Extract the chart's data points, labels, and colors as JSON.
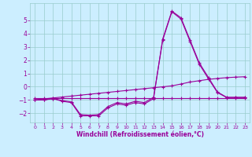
{
  "xlabel": "Windchill (Refroidissement éolien,°C)",
  "bg_color": "#cceeff",
  "line_color": "#990099",
  "grid_color": "#99cccc",
  "xlim": [
    -0.5,
    23.5
  ],
  "ylim": [
    -2.7,
    6.3
  ],
  "xticks": [
    0,
    1,
    2,
    3,
    4,
    5,
    6,
    7,
    8,
    9,
    10,
    11,
    12,
    13,
    14,
    15,
    16,
    17,
    18,
    19,
    20,
    21,
    22,
    23
  ],
  "yticks": [
    -2,
    -1,
    0,
    1,
    2,
    3,
    4,
    5
  ],
  "series0": [
    -1.0,
    -1.0,
    -0.9,
    -1.1,
    -1.2,
    -2.2,
    -2.2,
    -2.2,
    -1.6,
    -1.3,
    -1.4,
    -1.2,
    -1.3,
    -0.9,
    3.6,
    5.7,
    5.2,
    3.5,
    1.8,
    0.7,
    -0.4,
    -0.8,
    -0.8,
    -0.8
  ],
  "series1": [
    -1.0,
    -1.0,
    -0.9,
    -1.05,
    -1.15,
    -2.1,
    -2.15,
    -2.1,
    -1.5,
    -1.2,
    -1.3,
    -1.1,
    -1.2,
    -0.8,
    3.5,
    5.65,
    5.1,
    3.4,
    1.7,
    0.6,
    -0.45,
    -0.82,
    -0.82,
    -0.82
  ],
  "series2": [
    -0.85,
    -0.85,
    -0.85,
    -0.85,
    -0.85,
    -0.85,
    -0.85,
    -0.85,
    -0.85,
    -0.85,
    -0.85,
    -0.85,
    -0.85,
    -0.85,
    -0.85,
    -0.85,
    -0.85,
    -0.85,
    -0.85,
    -0.85,
    -0.85,
    -0.85,
    -0.85,
    -0.85
  ],
  "series3": [
    -1.0,
    -0.92,
    -0.85,
    -0.78,
    -0.71,
    -0.64,
    -0.57,
    -0.5,
    -0.43,
    -0.36,
    -0.29,
    -0.22,
    -0.15,
    -0.08,
    -0.01,
    0.06,
    0.2,
    0.35,
    0.45,
    0.55,
    0.62,
    0.68,
    0.72,
    0.75
  ],
  "marker": "+",
  "markersize": 3.0,
  "linewidth": 0.8,
  "xlabel_fontsize": 5.5,
  "tick_fontsize_x": 4.5,
  "tick_fontsize_y": 5.5
}
